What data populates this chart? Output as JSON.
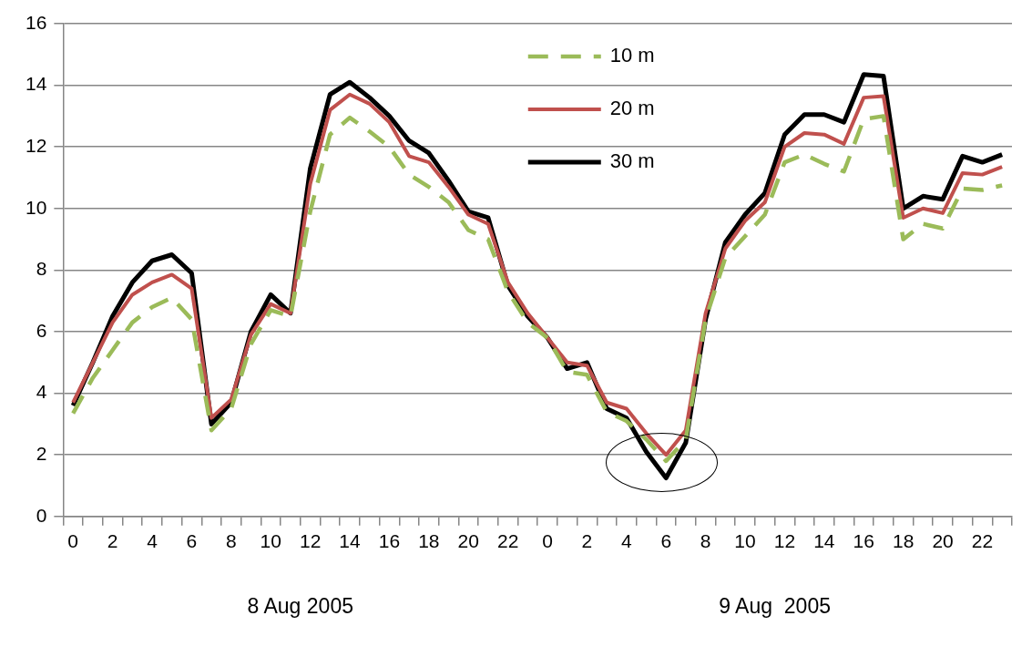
{
  "chart_data": {
    "type": "line",
    "categories": [
      "0",
      null,
      "2",
      null,
      "4",
      null,
      "6",
      null,
      "8",
      null,
      "10",
      null,
      "12",
      null,
      "14",
      null,
      "16",
      null,
      "18",
      null,
      "20",
      null,
      "22",
      null,
      "0",
      null,
      "2",
      null,
      "4",
      null,
      "6",
      null,
      "8",
      null,
      "10",
      null,
      "12",
      null,
      "14",
      null,
      "16",
      null,
      "18",
      null,
      "20",
      null,
      "22",
      null
    ],
    "series": [
      {
        "name": "10 m",
        "color": "#9bbb59",
        "line_style": "dashed",
        "values": [
          3.35,
          4.5,
          5.4,
          6.3,
          6.8,
          7.1,
          6.4,
          2.8,
          3.5,
          5.6,
          6.7,
          6.5,
          9.9,
          12.4,
          12.95,
          12.5,
          12.0,
          11.1,
          10.7,
          10.2,
          9.3,
          9.0,
          7.3,
          6.3,
          5.8,
          4.7,
          4.6,
          3.4,
          3.1,
          2.5,
          1.8,
          2.5,
          6.4,
          8.4,
          9.1,
          9.8,
          11.5,
          11.75,
          11.45,
          11.2,
          12.9,
          13.0,
          9.0,
          9.5,
          9.35,
          10.65,
          10.6,
          10.75
        ]
      },
      {
        "name": "20 m",
        "color": "#c0504d",
        "values": [
          3.7,
          5.0,
          6.3,
          7.2,
          7.6,
          7.85,
          7.4,
          3.2,
          3.8,
          5.9,
          6.9,
          6.6,
          10.8,
          13.2,
          13.7,
          13.4,
          12.8,
          11.7,
          11.5,
          10.7,
          9.8,
          9.5,
          7.6,
          6.6,
          5.8,
          5.0,
          4.9,
          3.7,
          3.5,
          2.7,
          2.0,
          2.8,
          6.6,
          8.7,
          9.6,
          10.2,
          12.0,
          12.45,
          12.4,
          12.1,
          13.6,
          13.65,
          9.7,
          10.0,
          9.85,
          11.15,
          11.1,
          11.35
        ]
      },
      {
        "name": "30 m",
        "color": "#000000",
        "values": [
          3.6,
          5.0,
          6.5,
          7.6,
          8.3,
          8.5,
          7.9,
          3.0,
          3.7,
          6.0,
          7.2,
          6.6,
          11.3,
          13.7,
          14.1,
          13.6,
          13.0,
          12.2,
          11.8,
          10.9,
          9.9,
          9.7,
          7.5,
          6.5,
          5.8,
          4.8,
          5.0,
          3.5,
          3.2,
          2.1,
          1.25,
          2.4,
          6.4,
          8.9,
          9.8,
          10.5,
          12.4,
          13.05,
          13.05,
          12.8,
          14.35,
          14.3,
          10.0,
          10.4,
          10.3,
          11.7,
          11.5,
          11.75
        ]
      }
    ],
    "ylim": [
      0,
      16
    ],
    "yticks": [
      0,
      2,
      4,
      6,
      8,
      10,
      12,
      14,
      16
    ],
    "grid": "y",
    "legend": "top",
    "marker": "none",
    "line_style": "solid",
    "annotations": [
      "8 Aug 2005",
      "9 Aug  2005"
    ]
  }
}
